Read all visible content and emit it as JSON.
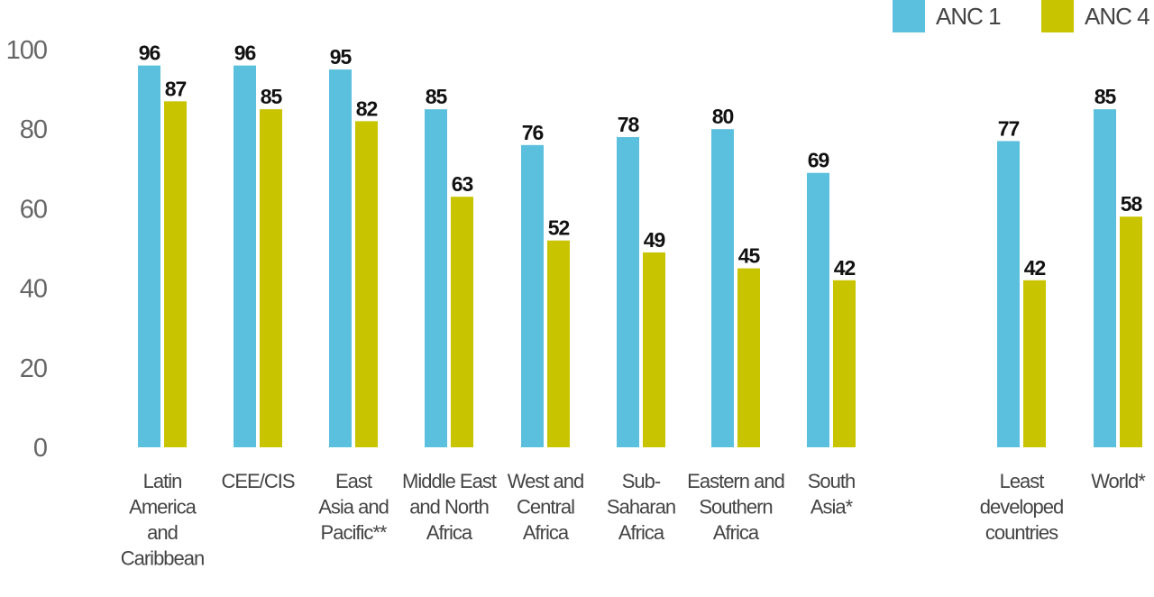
{
  "chart_data": {
    "type": "bar",
    "categories": [
      "Latin America and Caribbean",
      "CEE/CIS",
      "East Asia and Pacific**",
      "Middle East and North Africa",
      "West and Central Africa",
      "Sub-Saharan Africa",
      "Eastern and Southern Africa",
      "South Asia*",
      "Least developed countries",
      "World*"
    ],
    "category_lines": [
      [
        "Latin",
        "America",
        "and",
        "Caribbean"
      ],
      [
        "CEE/CIS"
      ],
      [
        "East",
        "Asia and",
        "Pacific**"
      ],
      [
        "Middle East",
        "and North",
        "Africa"
      ],
      [
        "West and",
        "Central",
        "Africa"
      ],
      [
        "Sub-",
        "Saharan",
        "Africa"
      ],
      [
        "Eastern and",
        "Southern",
        "Africa"
      ],
      [
        "South",
        "Asia*"
      ],
      [
        "Least",
        "developed",
        "countries"
      ],
      [
        "World*"
      ]
    ],
    "series": [
      {
        "name": "ANC 1",
        "color": "#5bc0de",
        "values": [
          96,
          96,
          95,
          85,
          76,
          78,
          80,
          69,
          77,
          85
        ]
      },
      {
        "name": "ANC 4",
        "color": "#c8c400",
        "values": [
          87,
          85,
          82,
          63,
          52,
          49,
          45,
          42,
          42,
          58
        ]
      }
    ],
    "yticks": [
      0,
      20,
      40,
      60,
      80,
      100
    ],
    "ylim": [
      0,
      100
    ],
    "grid": false,
    "legend_position": "top-right",
    "title": "",
    "xlabel": "",
    "ylabel": ""
  }
}
